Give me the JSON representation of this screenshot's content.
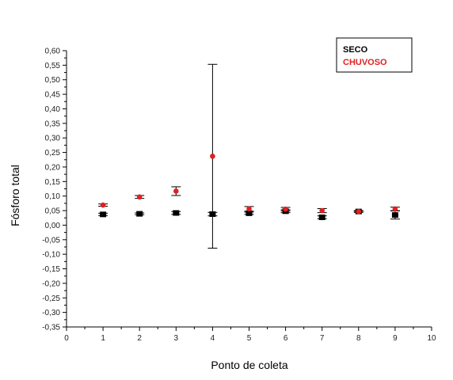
{
  "chart_data": {
    "type": "scatter",
    "xlabel": "Ponto de coleta",
    "ylabel": "Fósforo total",
    "xlim": [
      0,
      10
    ],
    "ylim": [
      -0.35,
      0.6
    ],
    "x_ticks": [
      0,
      1,
      2,
      3,
      4,
      5,
      6,
      7,
      8,
      9,
      10
    ],
    "y_ticks": [
      "0,60",
      "0,55",
      "0,50",
      "0,45",
      "0,40",
      "0,35",
      "0,30",
      "0,25",
      "0,20",
      "0,15",
      "0,10",
      "0,05",
      "0,00",
      "-0,05",
      "-0,10",
      "-0,15",
      "-0,20",
      "-0,25",
      "-0,30",
      "-0,35"
    ],
    "grid": false,
    "legend": {
      "placement": "top-right",
      "entries": [
        {
          "label": "SECO",
          "color": "#000000"
        },
        {
          "label": "CHUVOSO",
          "color": "#e02020"
        }
      ]
    },
    "series": [
      {
        "name": "SECO",
        "color": "#000000",
        "marker": "square",
        "x": [
          1,
          2,
          3,
          4,
          5,
          6,
          7,
          8,
          9
        ],
        "y": [
          0.037,
          0.039,
          0.042,
          0.038,
          0.041,
          0.048,
          0.027,
          0.047,
          0.035
        ],
        "err": [
          0.004,
          0.003,
          0.005,
          0.006,
          0.004,
          0.005,
          0.005,
          0.002,
          0.014
        ]
      },
      {
        "name": "CHUVOSO",
        "color": "#e02020",
        "marker": "circle",
        "x": [
          1,
          2,
          3,
          4,
          5,
          6,
          7,
          8,
          9
        ],
        "y": [
          0.069,
          0.097,
          0.117,
          0.237,
          0.056,
          0.055,
          0.05,
          0.047,
          0.056
        ],
        "err": [
          0.004,
          0.005,
          0.015,
          0.316,
          0.008,
          0.006,
          0.007,
          0.003,
          0.006
        ]
      }
    ]
  }
}
